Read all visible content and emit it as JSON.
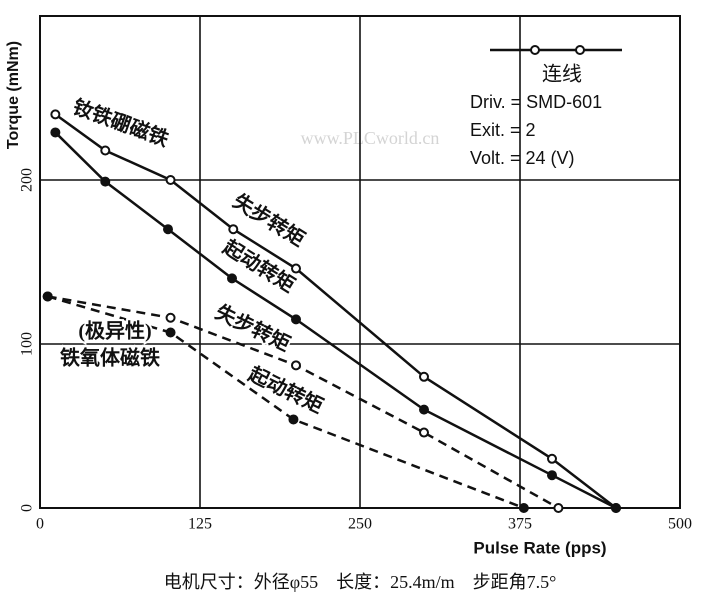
{
  "chart_data": {
    "type": "line",
    "x_label": "Pulse Rate (pps)",
    "y_label": "Torque (mNm)",
    "xlim": [
      0,
      500
    ],
    "xticks": [
      0,
      125,
      250,
      375,
      500
    ],
    "ylim": [
      0,
      300
    ],
    "yticks": [
      0,
      100,
      200
    ],
    "grid": true,
    "series": [
      {
        "color": "#111111",
        "marker": "open",
        "dashed": false,
        "x": [
          12,
          51,
          102,
          151,
          200,
          300,
          400,
          450
        ],
        "values": [
          240,
          218,
          200,
          170,
          146,
          80,
          30,
          0
        ]
      },
      {
        "color": "#111111",
        "marker": "filled",
        "dashed": false,
        "x": [
          12,
          51,
          100,
          150,
          200,
          300,
          400,
          450
        ],
        "values": [
          229,
          199,
          170,
          140,
          115,
          60,
          20,
          0
        ]
      },
      {
        "color": "#111111",
        "marker": "open",
        "dashed": true,
        "x": [
          6,
          102,
          200,
          300,
          405
        ],
        "values": [
          129,
          116,
          87,
          46,
          0
        ]
      },
      {
        "color": "#111111",
        "marker": "filled",
        "dashed": true,
        "x": [
          6,
          102,
          198,
          378
        ],
        "values": [
          129,
          107,
          54,
          0
        ]
      }
    ],
    "annotations": [
      "钕铁硼磁铁",
      "失步转矩",
      "起动转矩",
      "失步转矩",
      "起动转矩",
      "(极异性)",
      "铁氧体磁铁"
    ],
    "legend": "连线",
    "notes": [
      "Driv. = SMD-601",
      "Exit. = 2",
      "Volt. = 24 (V)"
    ],
    "watermark": "www.PLCworld.cn",
    "caption": "电机尺寸：外径φ55　长度：25.4m/m　步距角7.5°"
  }
}
